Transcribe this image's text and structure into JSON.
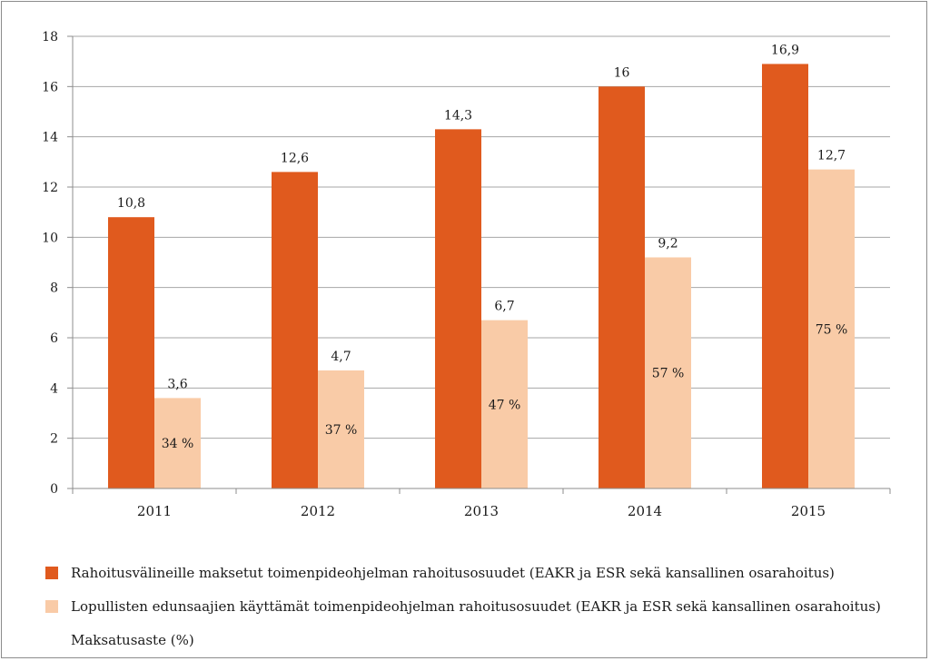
{
  "chart_data": {
    "type": "bar",
    "categories": [
      "2011",
      "2012",
      "2013",
      "2014",
      "2015"
    ],
    "series": [
      {
        "name": "Rahoitusvälineille maksetut toimenpideohjelman rahoitusosuudet (EAKR ja ESR sekä kansallinen osarahoitus)",
        "color": "#e05a1e",
        "values": [
          10.8,
          12.6,
          14.3,
          16,
          16.9
        ],
        "value_labels": [
          "10,8",
          "12,6",
          "14,3",
          "16",
          "16,9"
        ]
      },
      {
        "name": "Lopullisten edunsaajien käyttämät toimenpideohjelman rahoitusosuudet (EAKR ja ESR sekä kansallinen osarahoitus)",
        "color": "#f9cba7",
        "values": [
          3.6,
          4.7,
          6.7,
          9.2,
          12.7
        ],
        "value_labels": [
          "3,6",
          "4,7",
          "6,7",
          "9,2",
          "12,7"
        ]
      }
    ],
    "rate_series": {
      "name": "Maksatusaste (%)",
      "values": [
        34,
        37,
        47,
        57,
        75
      ],
      "labels": [
        "34 %",
        "37 %",
        "47 %",
        "57 %",
        "75 %"
      ]
    },
    "yticks": [
      "0",
      "2",
      "4",
      "6",
      "8",
      "10",
      "12",
      "14",
      "16",
      "18"
    ],
    "ylim": [
      0,
      18
    ],
    "grid": true,
    "legend_position": "bottom",
    "title": "",
    "xlabel": "",
    "ylabel": ""
  }
}
